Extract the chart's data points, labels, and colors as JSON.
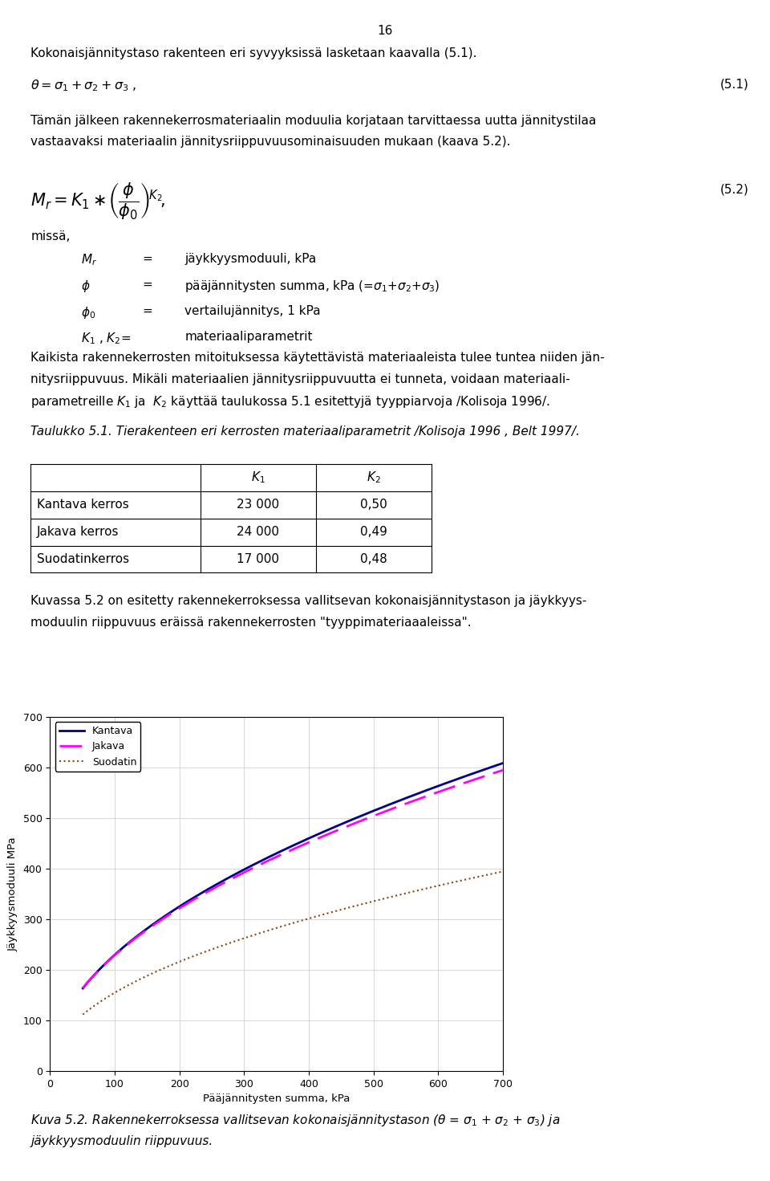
{
  "page_number": "16",
  "bg_color": "#FFFFFF",
  "text_color": "#000000",
  "chart": {
    "xlabel": "Pääjännitysten summa, kPa",
    "ylabel": "Jäykkyysmoduuli MPa",
    "xlim": [
      0,
      700
    ],
    "ylim": [
      0,
      700
    ],
    "xticks": [
      0,
      100,
      200,
      300,
      400,
      500,
      600,
      700
    ],
    "yticks": [
      0,
      100,
      200,
      300,
      400,
      500,
      600,
      700
    ],
    "kantava_color": "#00008B",
    "jakava_color": "#FF00FF",
    "suodatin_color": "#8B4513",
    "K1_kantava": 23000,
    "K2_kantava": 0.5,
    "K1_jakava": 24000,
    "K2_jakava": 0.49,
    "K1_suodatin": 17000,
    "K2_suodatin": 0.48,
    "phi_min": 50,
    "phi_max": 700
  }
}
